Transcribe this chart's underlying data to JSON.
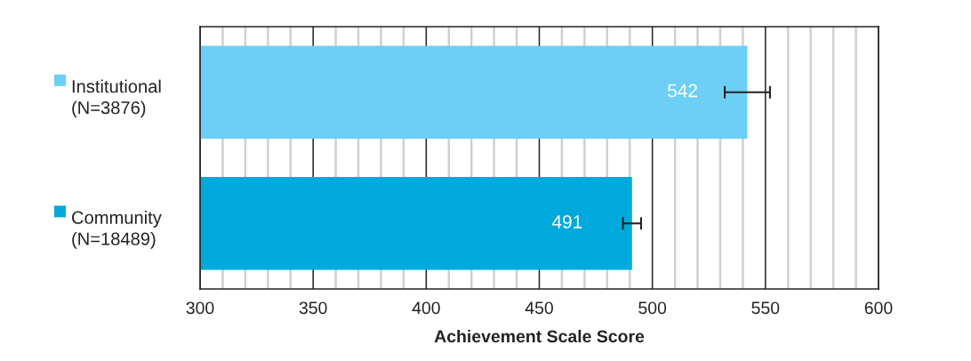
{
  "chart_data": {
    "type": "bar",
    "orientation": "horizontal",
    "categories": [
      "Institutional\n(N=3876)",
      "Community\n(N=18489)"
    ],
    "values": [
      542,
      491
    ],
    "colors": [
      "#6dcff6",
      "#00a9dc"
    ],
    "errors": [
      10,
      4
    ],
    "data_labels": true,
    "xlabel": "Achievement Scale Score",
    "xlim": [
      300,
      600
    ],
    "xticks": [
      300,
      {
        "value": 310,
        "label": null
      },
      {
        "value": 320,
        "label": null
      },
      {
        "value": 330,
        "label": null
      },
      {
        "value": 340,
        "label": null
      },
      350,
      {
        "value": 360,
        "label": null
      },
      {
        "value": 370,
        "label": null
      },
      {
        "value": 380,
        "label": null
      },
      {
        "value": 390,
        "label": null
      },
      400,
      {
        "value": 410,
        "label": null
      },
      {
        "value": 420,
        "label": null
      },
      {
        "value": 430,
        "label": null
      },
      {
        "value": 440,
        "label": null
      },
      450,
      {
        "value": 460,
        "label": null
      },
      {
        "value": 470,
        "label": null
      },
      {
        "value": 480,
        "label": null
      },
      {
        "value": 490,
        "label": null
      },
      500,
      {
        "value": 510,
        "label": null
      },
      {
        "value": 520,
        "label": null
      },
      {
        "value": 530,
        "label": null
      },
      {
        "value": 540,
        "label": null
      },
      550,
      {
        "value": 560,
        "label": null
      },
      {
        "value": 570,
        "label": null
      },
      {
        "value": 580,
        "label": null
      },
      {
        "value": 590,
        "label": null
      },
      600
    ],
    "grid": "x"
  }
}
